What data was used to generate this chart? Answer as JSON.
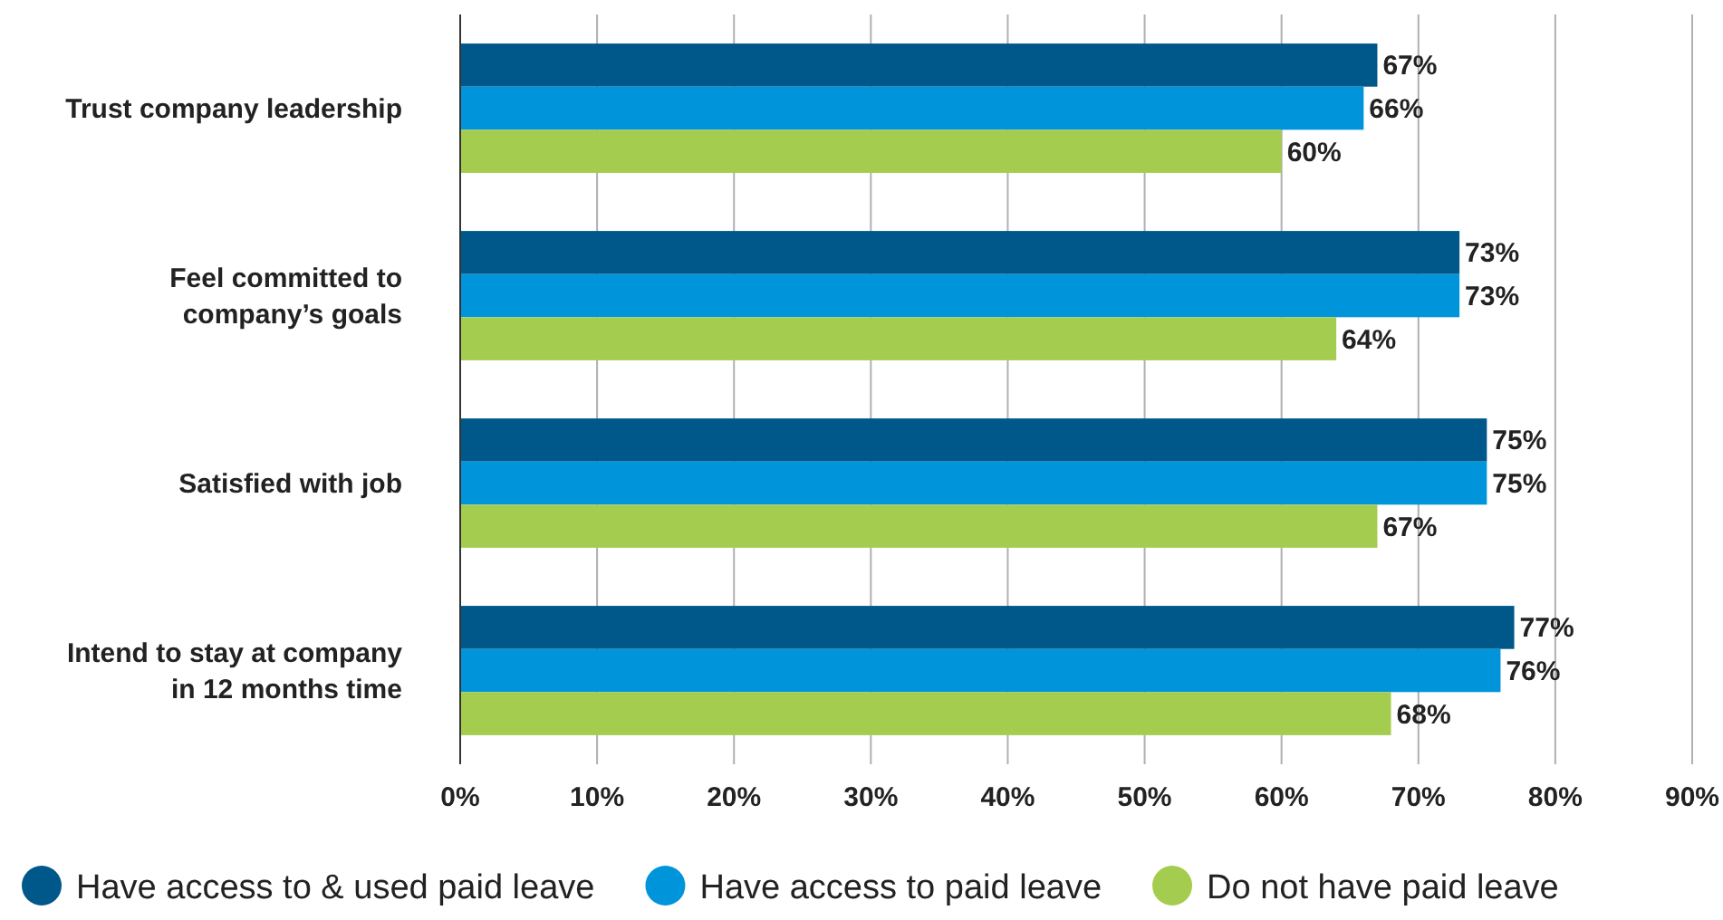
{
  "chart_data": {
    "type": "bar",
    "orientation": "horizontal",
    "categories": [
      "Trust company leadership",
      "Feel committed to company’s goals",
      "Satisfied with job",
      "Intend to stay at company in 12 months time"
    ],
    "series": [
      {
        "name": "Have access to & used paid leave",
        "color": "#00588a",
        "values": [
          67,
          73,
          75,
          77
        ],
        "value_labels": [
          "67%",
          "73%",
          "75%",
          "77%"
        ]
      },
      {
        "name": "Have access to paid leave",
        "color": "#0095da",
        "values": [
          66,
          73,
          75,
          76
        ],
        "value_labels": [
          "66%",
          "73%",
          "75%",
          "76%"
        ]
      },
      {
        "name": "Do not have paid leave",
        "color": "#a4cd4f",
        "values": [
          60,
          64,
          67,
          68
        ],
        "value_labels": [
          "60%",
          "64%",
          "67%",
          "68%"
        ]
      }
    ],
    "xlim": [
      0,
      90
    ],
    "xticks": [
      {
        "value": 0,
        "label": "0%"
      },
      {
        "value": 10,
        "label": "10%"
      },
      {
        "value": 20,
        "label": "20%"
      },
      {
        "value": 30,
        "label": "30%"
      },
      {
        "value": 40,
        "label": "40%"
      },
      {
        "value": 50,
        "label": "50%"
      },
      {
        "value": 60,
        "label": "60%"
      },
      {
        "value": 70,
        "label": "70%"
      },
      {
        "value": 80,
        "label": "80%"
      },
      {
        "value": 90,
        "label": "90%"
      }
    ],
    "grid": "x",
    "legend": "bottom"
  }
}
